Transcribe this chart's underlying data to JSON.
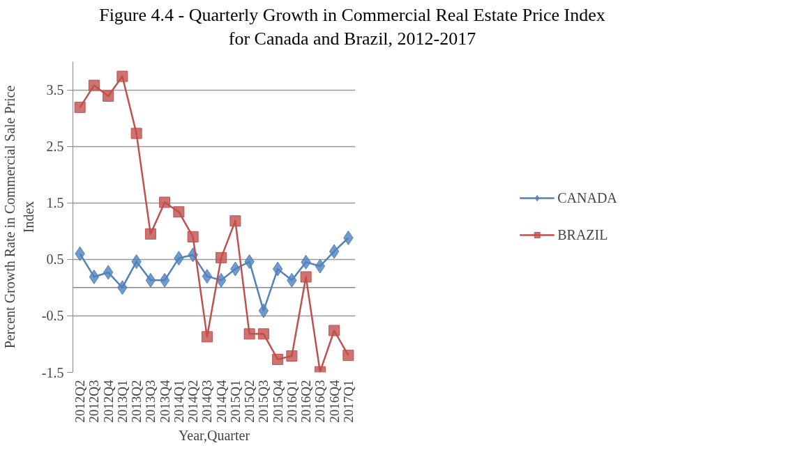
{
  "chart_data": {
    "type": "line",
    "title": "Figure 4.4 - Quarterly Growth in Commercial Real Estate Price Index\nfor Canada and Brazil, 2012-2017",
    "xlabel": "Year,Quarter",
    "ylabel": "Percent Growth Rate in Commercial Sale Price\nIndex",
    "categories": [
      "2012Q2",
      "2012Q3",
      "2012Q4",
      "2013Q1",
      "2013Q2",
      "2013Q3",
      "2013Q4",
      "2014Q1",
      "2014Q2",
      "2014Q3",
      "2014Q4",
      "2015Q1",
      "2015Q2",
      "2015Q3",
      "2015Q4",
      "2016Q1",
      "2016Q2",
      "2016Q3",
      "2016Q4",
      "2017Q1"
    ],
    "series": [
      {
        "name": "CANADA",
        "color": "#4f81bd",
        "marker": "diamond",
        "values": [
          0.6,
          0.19,
          0.27,
          0.0,
          0.46,
          0.13,
          0.13,
          0.52,
          0.58,
          0.2,
          0.13,
          0.33,
          0.46,
          -0.41,
          0.33,
          0.13,
          0.45,
          0.38,
          0.64,
          0.88
        ]
      },
      {
        "name": "BRAZIL",
        "color": "#c0504d",
        "marker": "square",
        "values": [
          3.19,
          3.58,
          3.39,
          3.74,
          2.73,
          0.95,
          1.51,
          1.34,
          0.9,
          -0.87,
          0.53,
          1.18,
          -0.82,
          -0.82,
          -1.27,
          -1.21,
          0.19,
          -1.49,
          -0.76,
          -1.2
        ]
      }
    ],
    "ylim": [
      -1.5,
      4
    ],
    "yticks": [
      -1.5,
      -0.5,
      0.5,
      1.5,
      2.5,
      3.5
    ],
    "grid": "y",
    "legend": "right",
    "line_style": "solid"
  }
}
